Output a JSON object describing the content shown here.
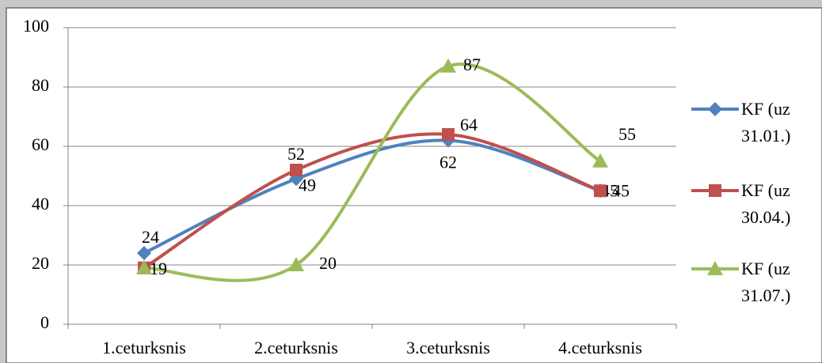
{
  "chart_data": {
    "type": "line",
    "categories": [
      "1.ceturksnis",
      "2.ceturksnis",
      "3.ceturksnis",
      "4.ceturksnis"
    ],
    "series": [
      {
        "name": "KF (uz 31.01.)",
        "color": "#4f81bd",
        "marker": "diamond",
        "values": [
          24,
          49,
          62,
          45
        ]
      },
      {
        "name": "KF (uz 30.04.)",
        "color": "#c0504d",
        "marker": "square",
        "values": [
          19,
          52,
          64,
          45
        ]
      },
      {
        "name": "KF (uz 31.07.)",
        "color": "#9bbb59",
        "marker": "triangle",
        "values": [
          19,
          20,
          87,
          55
        ]
      }
    ],
    "ylim": [
      0,
      100
    ],
    "yticks": [
      0,
      20,
      40,
      60,
      80,
      100
    ],
    "grid": true,
    "legend": "right",
    "smooth": true
  }
}
